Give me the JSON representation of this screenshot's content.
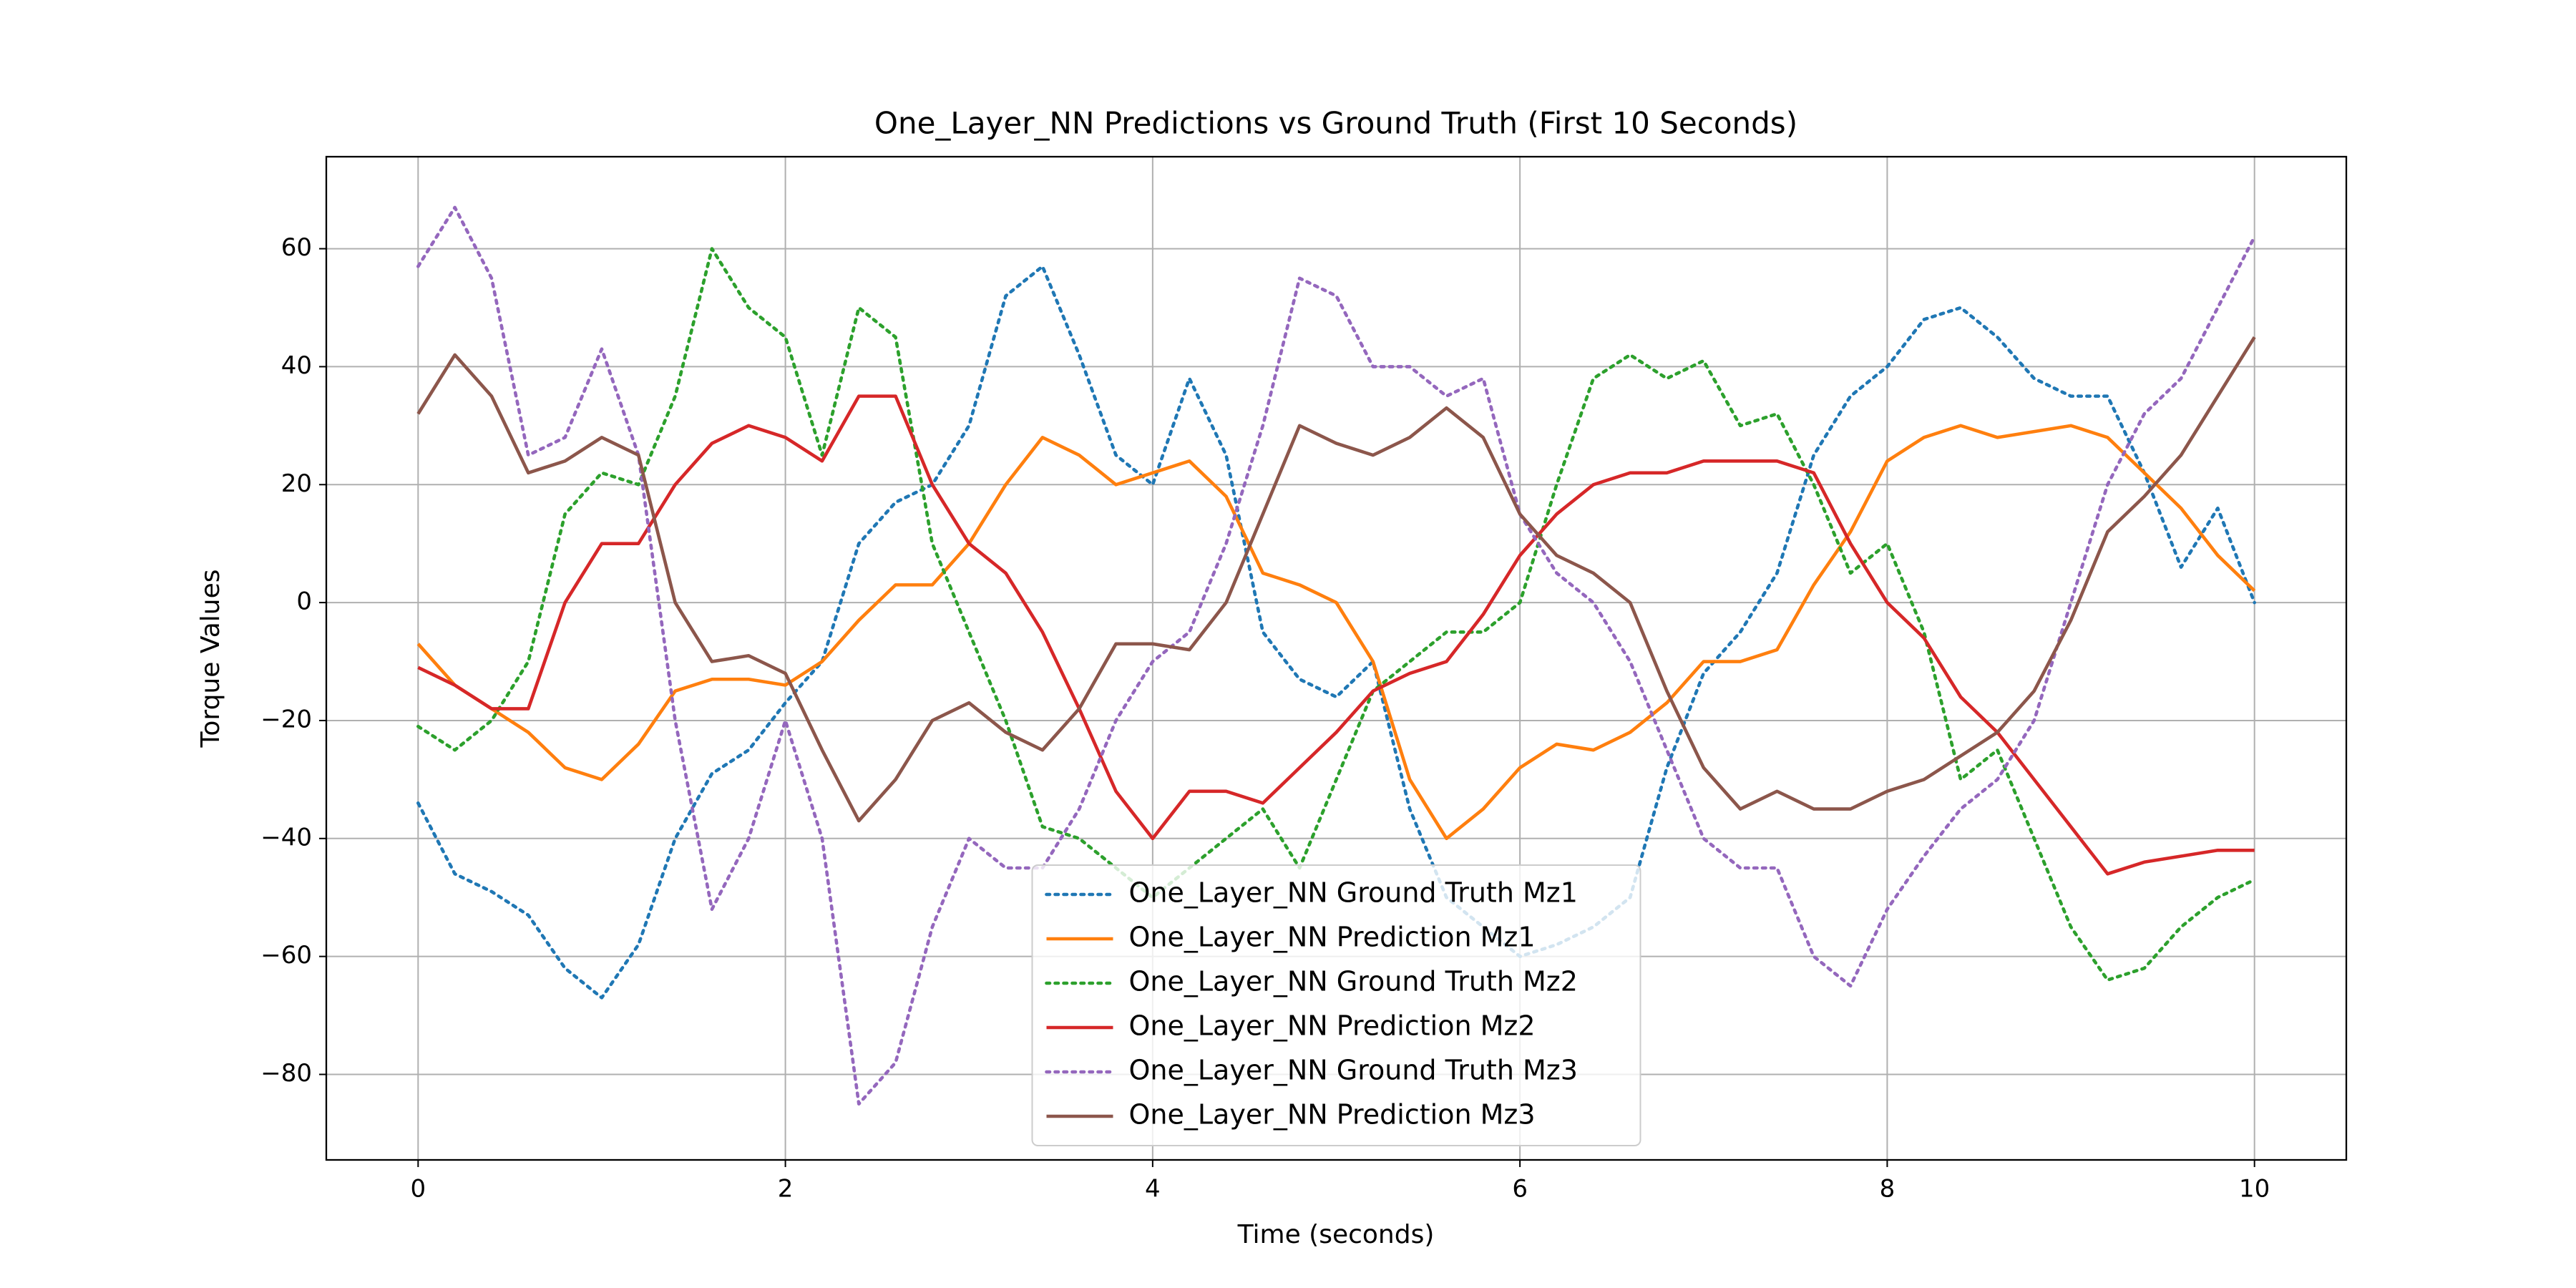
{
  "chart_data": {
    "type": "line",
    "title": "One_Layer_NN Predictions vs Ground Truth (First 10 Seconds)",
    "xlabel": "Time (seconds)",
    "ylabel": "Torque Values",
    "x": [
      0,
      0.2,
      0.4,
      0.6,
      0.8,
      1.0,
      1.2,
      1.4,
      1.6,
      1.8,
      2.0,
      2.2,
      2.4,
      2.6,
      2.8,
      3.0,
      3.2,
      3.4,
      3.6,
      3.8,
      4.0,
      4.2,
      4.4,
      4.6,
      4.8,
      5.0,
      5.2,
      5.4,
      5.6,
      5.8,
      6.0,
      6.2,
      6.4,
      6.6,
      6.8,
      7.0,
      7.2,
      7.4,
      7.6,
      7.8,
      8.0,
      8.2,
      8.4,
      8.6,
      8.8,
      9.0,
      9.2,
      9.4,
      9.6,
      9.8,
      10
    ],
    "series": [
      {
        "name": "One_Layer_NN Ground Truth Mz1",
        "color": "#1f77b4",
        "linestyle": "dotted",
        "values": [
          -34,
          -46,
          -49,
          -53,
          -62,
          -67,
          -58,
          -40,
          -29,
          -25,
          -17,
          -10,
          10,
          17,
          20,
          30,
          52,
          57,
          42,
          25,
          20,
          38,
          25,
          -5,
          -13,
          -16,
          -10,
          -35,
          -50,
          -55,
          -60,
          -58,
          -55,
          -50,
          -28,
          -12,
          -5,
          5,
          25,
          35,
          40,
          48,
          50,
          45,
          38,
          35,
          35,
          22,
          6,
          16,
          0
        ]
      },
      {
        "name": "One_Layer_NN Prediction Mz1",
        "color": "#ff7f0e",
        "linestyle": "solid",
        "values": [
          -7,
          -14,
          -18,
          -22,
          -28,
          -30,
          -24,
          -15,
          -13,
          -13,
          -14,
          -10,
          -3,
          3,
          3,
          10,
          20,
          28,
          25,
          20,
          22,
          24,
          18,
          5,
          3,
          0,
          -10,
          -30,
          -40,
          -35,
          -28,
          -24,
          -25,
          -22,
          -17,
          -10,
          -10,
          -8,
          3,
          12,
          24,
          28,
          30,
          28,
          29,
          30,
          28,
          22,
          16,
          8,
          2
        ]
      },
      {
        "name": "One_Layer_NN Ground Truth Mz2",
        "color": "#2ca02c",
        "linestyle": "dotted",
        "values": [
          -21,
          -25,
          -20,
          -10,
          15,
          22,
          20,
          35,
          60,
          50,
          45,
          25,
          50,
          45,
          10,
          -5,
          -20,
          -38,
          -40,
          -45,
          -50,
          -45,
          -40,
          -35,
          -45,
          -30,
          -15,
          -10,
          -5,
          -5,
          0,
          20,
          38,
          42,
          38,
          41,
          30,
          32,
          20,
          5,
          10,
          -5,
          -30,
          -25,
          -40,
          -55,
          -64,
          -62,
          -55,
          -50,
          -47
        ]
      },
      {
        "name": "One_Layer_NN Prediction Mz2",
        "color": "#d62728",
        "linestyle": "solid",
        "values": [
          -11,
          -14,
          -18,
          -18,
          0,
          10,
          10,
          20,
          27,
          30,
          28,
          24,
          35,
          35,
          20,
          10,
          5,
          -5,
          -18,
          -32,
          -40,
          -32,
          -32,
          -34,
          -28,
          -22,
          -15,
          -12,
          -10,
          -2,
          8,
          15,
          20,
          22,
          22,
          24,
          24,
          24,
          22,
          10,
          0,
          -6,
          -16,
          -22,
          -30,
          -38,
          -46,
          -44,
          -43,
          -42,
          -42
        ]
      },
      {
        "name": "One_Layer_NN Ground Truth Mz3",
        "color": "#9467bd",
        "linestyle": "dotted",
        "values": [
          57,
          67,
          55,
          25,
          28,
          43,
          25,
          -20,
          -52,
          -40,
          -20,
          -40,
          -85,
          -78,
          -55,
          -40,
          -45,
          -45,
          -35,
          -20,
          -10,
          -5,
          10,
          30,
          55,
          52,
          40,
          40,
          35,
          38,
          15,
          5,
          0,
          -10,
          -25,
          -40,
          -45,
          -45,
          -60,
          -65,
          -52,
          -43,
          -35,
          -30,
          -20,
          0,
          20,
          32,
          38,
          50,
          62
        ]
      },
      {
        "name": "One_Layer_NN Prediction Mz3",
        "color": "#8c564b",
        "linestyle": "solid",
        "values": [
          32,
          42,
          35,
          22,
          24,
          28,
          25,
          0,
          -10,
          -9,
          -12,
          -25,
          -37,
          -30,
          -20,
          -17,
          -22,
          -25,
          -18,
          -7,
          -7,
          -8,
          0,
          15,
          30,
          27,
          25,
          28,
          33,
          28,
          15,
          8,
          5,
          0,
          -15,
          -28,
          -35,
          -32,
          -35,
          -35,
          -32,
          -30,
          -26,
          -22,
          -15,
          -3,
          12,
          18,
          25,
          35,
          45
        ]
      }
    ],
    "xlim": [
      -0.5,
      10.5
    ],
    "xticks": [
      0,
      2,
      4,
      6,
      8,
      10
    ],
    "ylim": [
      -94.5,
      75.6
    ],
    "yticks": [
      {
        "value": -80,
        "label": "−80"
      },
      {
        "value": -60,
        "label": "−60"
      },
      {
        "value": -40,
        "label": "−40"
      },
      {
        "value": -20,
        "label": "−20"
      },
      0,
      20,
      40,
      60
    ],
    "grid": true,
    "legend": "lower center"
  }
}
